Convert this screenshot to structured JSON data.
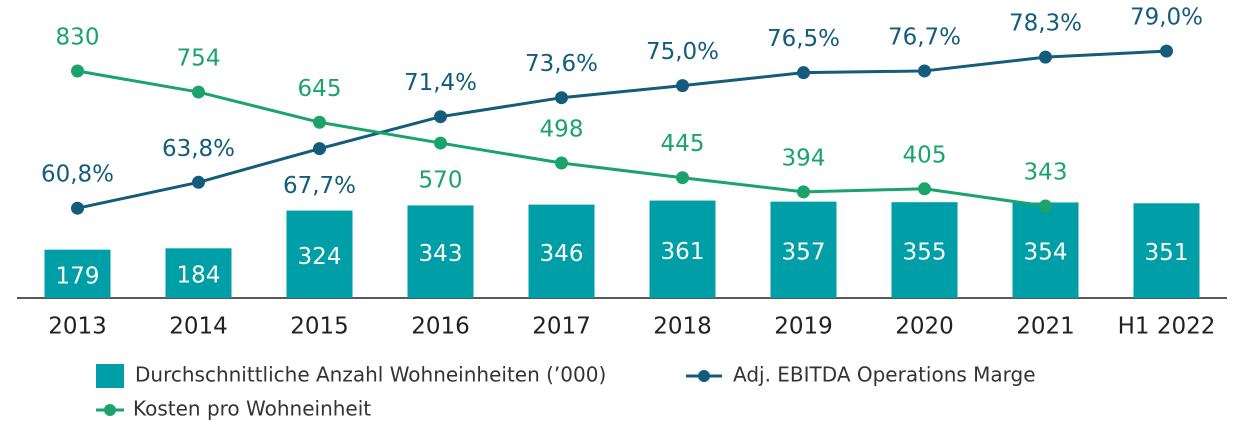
{
  "chart_data": {
    "type": "bar",
    "categories": [
      "2013",
      "2014",
      "2015",
      "2016",
      "2017",
      "2018",
      "2019",
      "2020",
      "2021",
      "H1 2022"
    ],
    "ylim": [
      0,
      1030
    ],
    "y2lim": [
      50.4,
      82.6
    ],
    "y3lim": [
      11,
      1014
    ],
    "series": [
      {
        "name": "Durchschnittliche Anzahl Wohneinheiten (’000)",
        "type": "bar",
        "color": "#009ea6",
        "values": [
          179,
          184,
          324,
          343,
          346,
          361,
          357,
          355,
          354,
          351
        ]
      },
      {
        "name": "Adj. EBITDA Operations Marge",
        "type": "line",
        "axis": "y2",
        "color": "#135c7c",
        "values": [
          60.8,
          63.8,
          67.7,
          71.4,
          73.6,
          75.0,
          76.5,
          76.7,
          78.3,
          79.0
        ],
        "value_labels": [
          "60,8%",
          "63,8%",
          "67,7%",
          "71,4%",
          "73,6%",
          "75,0%",
          "76,5%",
          "76,7%",
          "78,3%",
          "79,0%"
        ]
      },
      {
        "name": "Kosten pro Wohneinheit",
        "type": "line",
        "axis": "y3",
        "color": "#1ba36b",
        "values": [
          830,
          754,
          645,
          570,
          498,
          445,
          394,
          405,
          343,
          null
        ]
      }
    ]
  }
}
